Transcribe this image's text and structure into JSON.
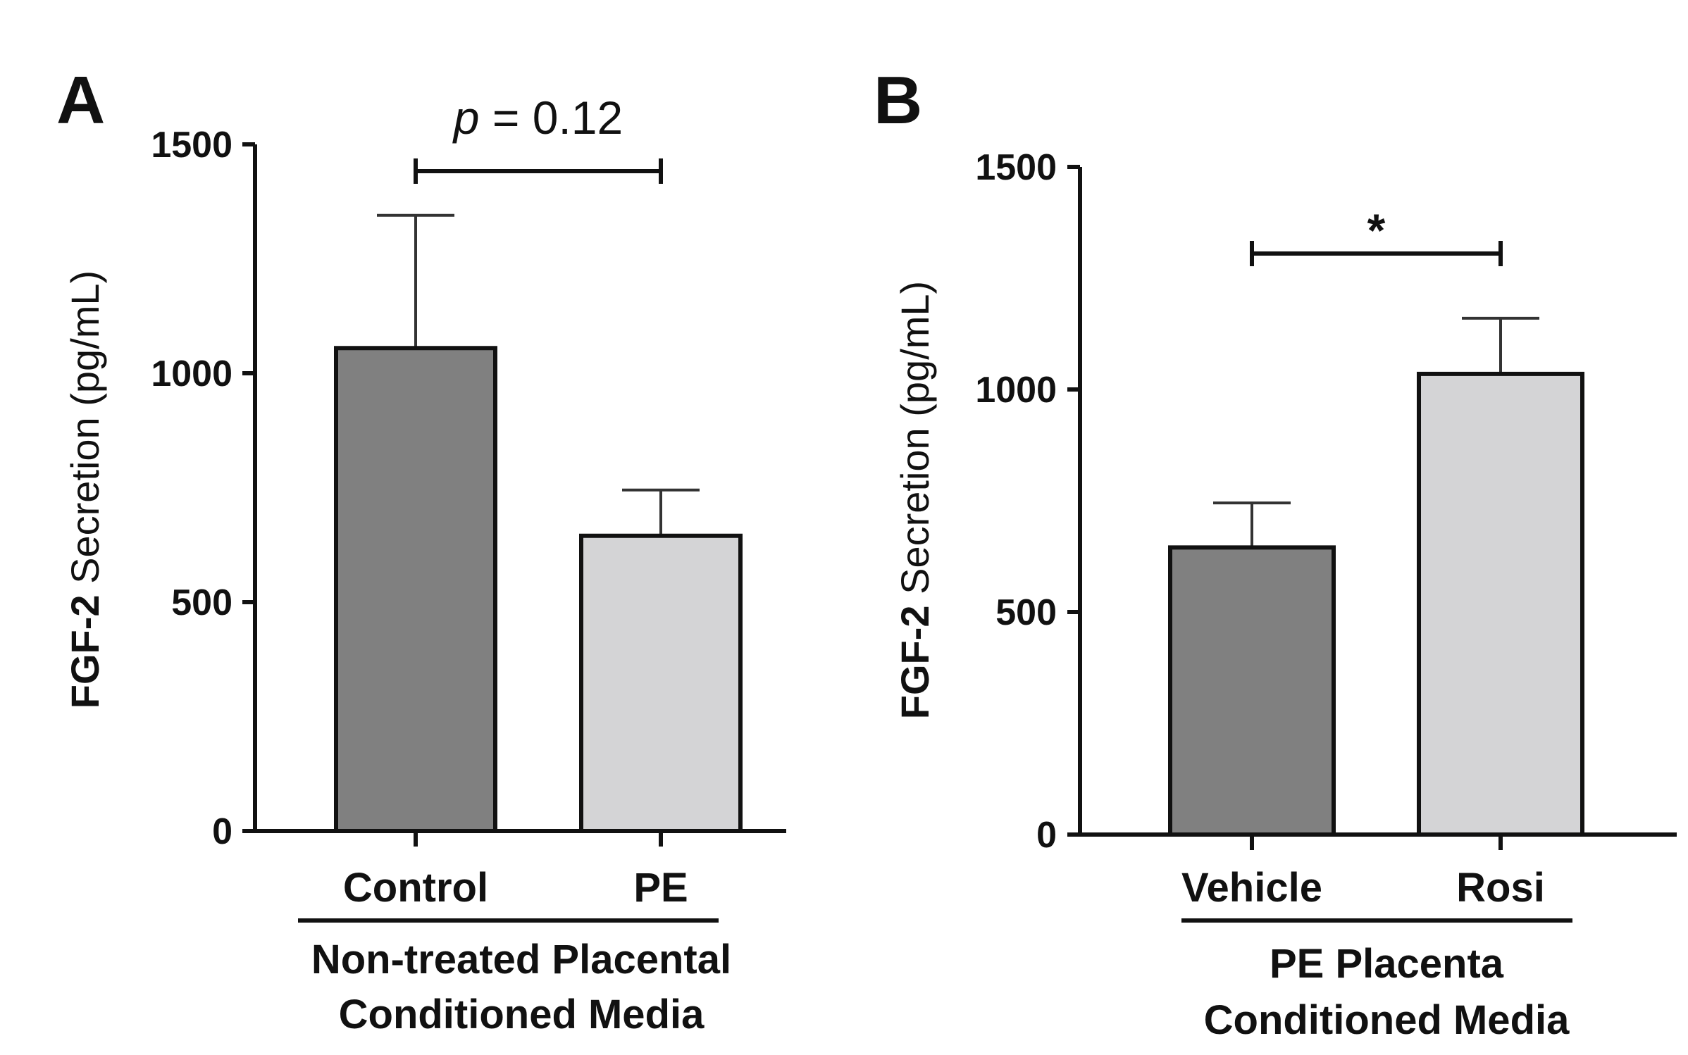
{
  "chart_data": [
    {
      "panel": "A",
      "type": "bar",
      "ylabel_bold": "FGF-2",
      "ylabel_rest": " Secretion (pg/mL)",
      "ylim": [
        0,
        1500
      ],
      "yticks": [
        0,
        500,
        1000,
        1500
      ],
      "categories": [
        "Control",
        "PE"
      ],
      "values": [
        1055,
        645
      ],
      "errors": [
        290,
        100
      ],
      "colors": [
        "#808080",
        "#d4d4d6"
      ],
      "group_label": [
        "Non-treated Placental",
        "Conditioned Media"
      ],
      "significance": {
        "between": [
          0,
          1
        ],
        "label_italic": "p",
        "label_rest": " = 0.12"
      }
    },
    {
      "panel": "B",
      "type": "bar",
      "ylabel_bold": "FGF-2",
      "ylabel_rest": " Secretion (pg/mL)",
      "ylim": [
        0,
        1500
      ],
      "yticks": [
        0,
        500,
        1000,
        1500
      ],
      "categories": [
        "Vehicle",
        "Rosi"
      ],
      "values": [
        645,
        1035
      ],
      "errors": [
        100,
        125
      ],
      "colors": [
        "#808080",
        "#d4d4d6"
      ],
      "group_label": [
        "PE Placenta",
        "Conditioned Media"
      ],
      "significance": {
        "between": [
          0,
          1
        ],
        "label_italic": "",
        "label_rest": "*"
      }
    }
  ]
}
